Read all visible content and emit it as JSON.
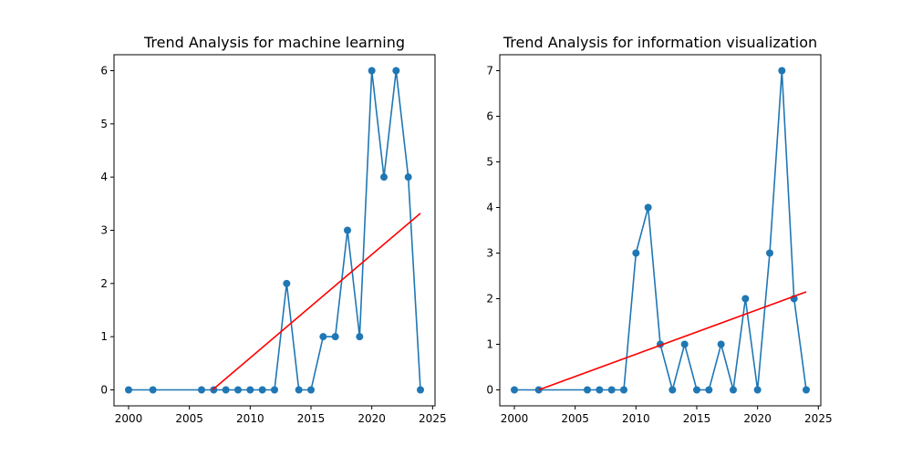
{
  "chart_data": [
    {
      "type": "line",
      "title": "Trend Analysis for machine learning",
      "xlabel": "",
      "ylabel": "",
      "xlim": [
        1998.8,
        2025.2
      ],
      "ylim": [
        -0.3,
        6.3
      ],
      "xticks": [
        2000,
        2005,
        2010,
        2015,
        2020,
        2025
      ],
      "yticks": [
        0,
        1,
        2,
        3,
        4,
        5,
        6
      ],
      "grid": false,
      "legend": "none",
      "series": [
        {
          "kind": "line-markers",
          "color": "#1f77b4",
          "x": [
            2000,
            2002,
            2006,
            2007,
            2008,
            2009,
            2010,
            2011,
            2012,
            2013,
            2014,
            2015,
            2016,
            2017,
            2018,
            2019,
            2020,
            2021,
            2022,
            2023,
            2024
          ],
          "y": [
            0,
            0,
            0,
            0,
            0,
            0,
            0,
            0,
            0,
            2,
            0,
            0,
            1,
            1,
            3,
            1,
            6,
            4,
            6,
            4,
            0
          ]
        },
        {
          "kind": "trend-line",
          "color": "#ff0000",
          "x": [
            2006.9,
            2024
          ],
          "y": [
            0,
            3.32
          ]
        }
      ]
    },
    {
      "type": "line",
      "title": "Trend Analysis for information visualization",
      "xlabel": "",
      "ylabel": "",
      "xlim": [
        1998.8,
        2025.2
      ],
      "ylim": [
        -0.35,
        7.35
      ],
      "xticks": [
        2000,
        2005,
        2010,
        2015,
        2020,
        2025
      ],
      "yticks": [
        0,
        1,
        2,
        3,
        4,
        5,
        6,
        7
      ],
      "grid": false,
      "legend": "none",
      "series": [
        {
          "kind": "line-markers",
          "color": "#1f77b4",
          "x": [
            2000,
            2002,
            2006,
            2007,
            2008,
            2009,
            2010,
            2011,
            2012,
            2013,
            2014,
            2015,
            2016,
            2017,
            2018,
            2019,
            2020,
            2021,
            2022,
            2023,
            2024
          ],
          "y": [
            0,
            0,
            0,
            0,
            0,
            0,
            3,
            4,
            1,
            0,
            1,
            0,
            0,
            1,
            0,
            2,
            0,
            3,
            7,
            2,
            0
          ]
        },
        {
          "kind": "trend-line",
          "color": "#ff0000",
          "x": [
            2002,
            2024
          ],
          "y": [
            0,
            2.15
          ]
        }
      ]
    }
  ]
}
